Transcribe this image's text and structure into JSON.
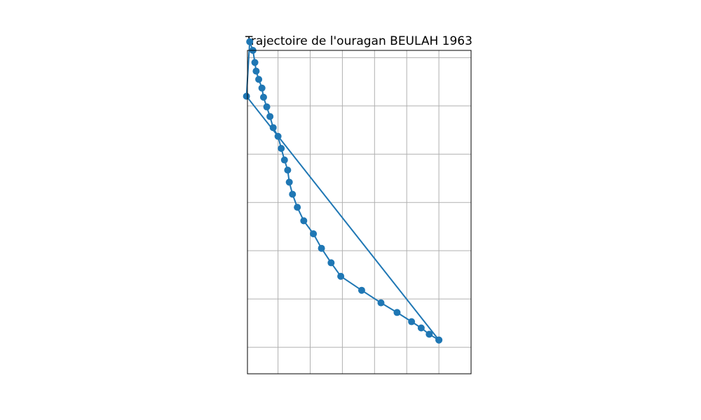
{
  "chart_data": {
    "type": "line",
    "title": "Trajectoire de l'ouragan BEULAH 1963",
    "xlabel": "",
    "ylabel": "",
    "grid": true,
    "xlim": [
      -0.95,
      6.0
    ],
    "ylim": [
      -0.55,
      6.15
    ],
    "x_grid_values": [
      0,
      1,
      2,
      3,
      4,
      5
    ],
    "y_grid_values": [
      0,
      1,
      2,
      3,
      4,
      5,
      6
    ],
    "series": [
      {
        "color": "#1f77b4",
        "marker": "circle",
        "x": [
          5.0,
          4.7,
          4.45,
          4.15,
          3.7,
          3.2,
          2.6,
          1.95,
          1.65,
          1.35,
          1.1,
          0.8,
          0.6,
          0.45,
          0.35,
          0.3,
          0.2,
          0.1,
          0.0,
          -0.15,
          -0.25,
          -0.35,
          -0.45,
          -0.5,
          -0.6,
          -0.68,
          -0.72,
          -0.78,
          -0.88,
          -0.98,
          5.0
        ],
        "y": [
          0.15,
          0.27,
          0.4,
          0.53,
          0.72,
          0.92,
          1.18,
          1.47,
          1.75,
          2.05,
          2.35,
          2.62,
          2.9,
          3.17,
          3.42,
          3.67,
          3.88,
          4.12,
          4.37,
          4.55,
          4.78,
          4.98,
          5.18,
          5.37,
          5.55,
          5.72,
          5.9,
          6.15,
          6.33,
          5.2,
          0.15
        ]
      }
    ]
  }
}
